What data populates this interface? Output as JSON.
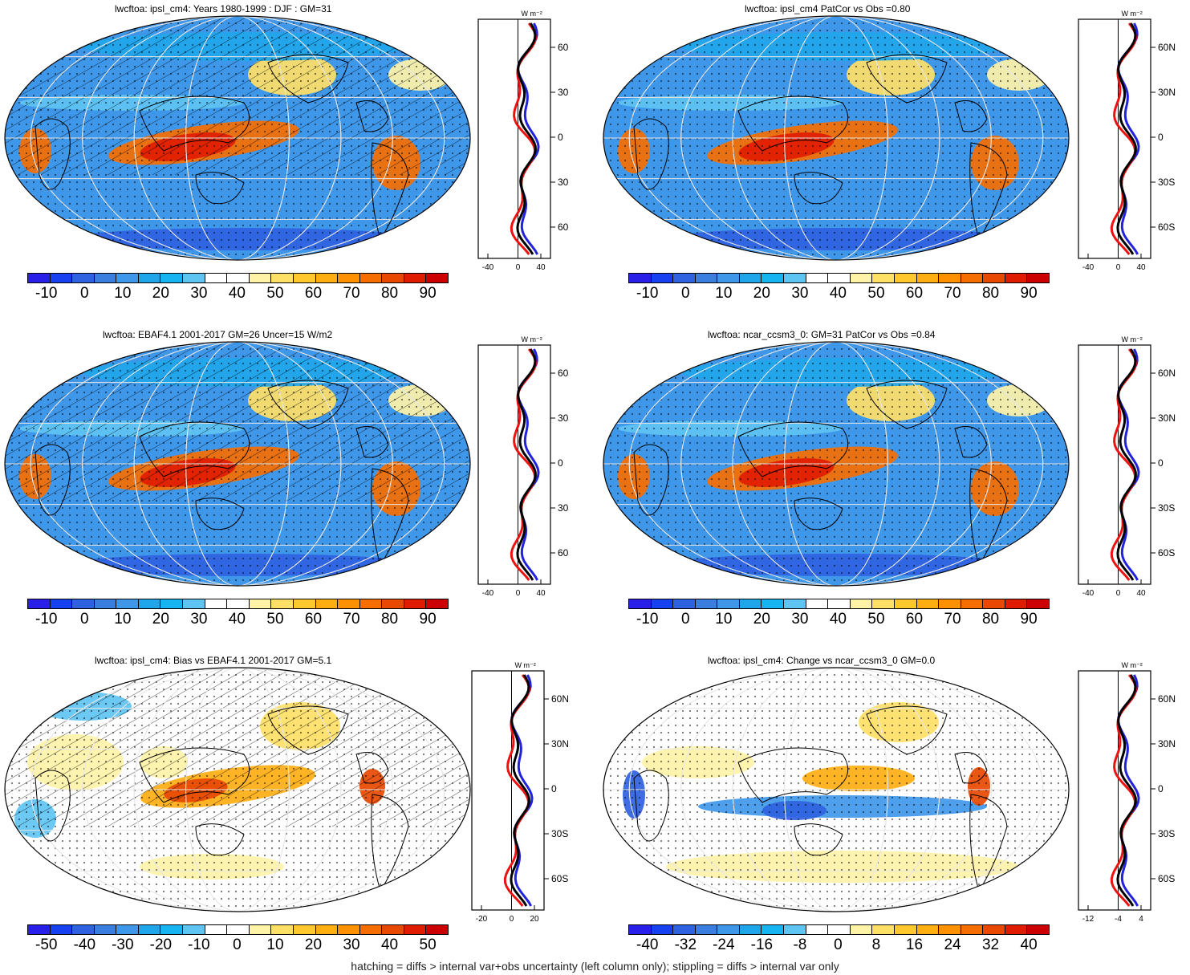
{
  "panels": [
    {
      "id": "p1",
      "title": "lwcftoa: ipsl_cm4: Years 1980-1999 : DJF : GM=31",
      "scale": "full",
      "hatch": true,
      "cbar": [
        "-10",
        "0",
        "10",
        "20",
        "30",
        "40",
        "50",
        "60",
        "70",
        "80",
        "90"
      ],
      "prof": {
        "ticks": [
          "-40",
          "0",
          "40"
        ],
        "lat": [
          "60N",
          "30N",
          "0",
          "30S",
          "60S"
        ],
        "unit": "W m⁻²"
      }
    },
    {
      "id": "p2",
      "title": "lwcftoa: ipsl_cm4 PatCor vs Obs =0.80",
      "scale": "full",
      "hatch": false,
      "cbar": [
        "-10",
        "0",
        "10",
        "20",
        "30",
        "40",
        "50",
        "60",
        "70",
        "80",
        "90"
      ],
      "prof": {
        "ticks": [
          "-40",
          "0",
          "40"
        ],
        "lat": [
          "60N",
          "30N",
          "0",
          "30S",
          "60S"
        ],
        "unit": "W m⁻²"
      }
    },
    {
      "id": "p3",
      "title": "lwcftoa: EBAF4.1 2001-2017 GM=26 Uncer=15 W/m2",
      "scale": "full",
      "hatch": true,
      "cbar": [
        "-10",
        "0",
        "10",
        "20",
        "30",
        "40",
        "50",
        "60",
        "70",
        "80",
        "90"
      ],
      "prof": {
        "ticks": [
          "-40",
          "0",
          "40"
        ],
        "lat": [
          "60N",
          "30N",
          "0",
          "30S",
          "60S"
        ],
        "unit": "W m⁻²"
      }
    },
    {
      "id": "p4",
      "title": "lwcftoa: ncar_ccsm3_0: GM=31 PatCor vs Obs =0.84",
      "scale": "full",
      "hatch": false,
      "cbar": [
        "-10",
        "0",
        "10",
        "20",
        "30",
        "40",
        "50",
        "60",
        "70",
        "80",
        "90"
      ],
      "prof": {
        "ticks": [
          "-40",
          "0",
          "40"
        ],
        "lat": [
          "60N",
          "30N",
          "0",
          "30S",
          "60S"
        ],
        "unit": "W m⁻²"
      }
    },
    {
      "id": "p5",
      "title": "lwcftoa: ipsl_cm4: Bias vs EBAF4.1 2001-2017 GM=5.1",
      "scale": "bias",
      "hatch": true,
      "cbar": [
        "-50",
        "-40",
        "-30",
        "-20",
        "-10",
        "0",
        "10",
        "20",
        "30",
        "40",
        "50"
      ],
      "prof": {
        "ticks": [
          "-20",
          "0",
          "20"
        ],
        "lat": [
          "60N",
          "30N",
          "0",
          "30S",
          "60S"
        ],
        "unit": "W m⁻²"
      }
    },
    {
      "id": "p6",
      "title": "lwcftoa: ipsl_cm4: Change vs ncar_ccsm3_0 GM=0.0",
      "scale": "change",
      "hatch": false,
      "cbar": [
        "-40",
        "-32",
        "-24",
        "-16",
        "-8",
        "0",
        "8",
        "16",
        "24",
        "32",
        "40"
      ],
      "prof": {
        "ticks": [
          "-12",
          "-4",
          "4"
        ],
        "lat": [
          "60N",
          "30N",
          "0",
          "30S",
          "60S"
        ],
        "unit": "W m⁻²"
      }
    }
  ],
  "footer": "hatching = diffs > internal var+obs uncertainty (left column only); stippling = diffs > internal var only",
  "colors": [
    "#2a1fe8",
    "#1640f0",
    "#2f62e0",
    "#3a7fe0",
    "#3f97ea",
    "#1fa6ea",
    "#16b4f0",
    "#5ec4f2",
    "#ffffff",
    "#ffffff",
    "#fff3a8",
    "#ffe066",
    "#ffc92e",
    "#ffae12",
    "#ff9100",
    "#f66e00",
    "#e84800",
    "#e01c00",
    "#cc0000"
  ],
  "chart_data": [
    {
      "type": "heatmap",
      "panel": "ipsl_cm4: Years 1980-1999 : DJF",
      "x": [
        "-10",
        "0",
        "10",
        "20",
        "30",
        "40",
        "50",
        "60",
        "70",
        "80",
        "90"
      ],
      "global_mean": 31,
      "units": "W/m2"
    },
    {
      "type": "heatmap",
      "panel": "ipsl_cm4 PatCor vs Obs",
      "pattern_correlation": 0.8,
      "global_mean": 31,
      "units": "W/m2"
    },
    {
      "type": "heatmap",
      "panel": "EBAF4.1 2001-2017",
      "global_mean": 26,
      "uncertainty": 15,
      "units": "W/m2"
    },
    {
      "type": "heatmap",
      "panel": "ncar_ccsm3_0",
      "global_mean": 31,
      "pattern_correlation": 0.84,
      "units": "W/m2"
    },
    {
      "type": "heatmap",
      "panel": "ipsl_cm4: Bias vs EBAF4.1 2001-2017",
      "global_mean": 5.1,
      "units": "W/m2"
    },
    {
      "type": "heatmap",
      "panel": "ipsl_cm4: Change vs ncar_ccsm3_0",
      "global_mean": 0.0,
      "units": "W/m2"
    }
  ]
}
